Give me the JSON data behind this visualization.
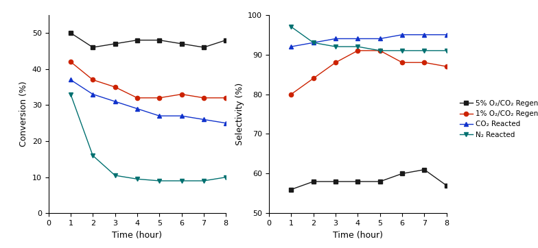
{
  "conv_time": [
    1,
    2,
    3,
    4,
    5,
    6,
    7,
    8
  ],
  "conv_5pct_O2": [
    50,
    46,
    47,
    48,
    48,
    47,
    46,
    48
  ],
  "conv_1pct_O2": [
    42,
    37,
    35,
    32,
    32,
    33,
    32,
    32
  ],
  "conv_CO2": [
    37,
    33,
    31,
    29,
    27,
    27,
    26,
    25
  ],
  "conv_N2": [
    33,
    16,
    10.5,
    9.5,
    9,
    9,
    9,
    10
  ],
  "sel_time": [
    1,
    2,
    3,
    4,
    5,
    6,
    7,
    8
  ],
  "sel_5pct_O2": [
    56,
    58,
    58,
    58,
    58,
    60,
    61,
    57
  ],
  "sel_1pct_O2": [
    80,
    84,
    88,
    91,
    91,
    88,
    88,
    87
  ],
  "sel_CO2": [
    92,
    93,
    94,
    94,
    94,
    95,
    95,
    95
  ],
  "sel_N2": [
    97,
    93,
    92,
    92,
    91,
    91,
    91,
    91
  ],
  "conv_ylim": [
    0,
    55
  ],
  "sel_ylim": [
    50,
    100
  ],
  "conv_yticks": [
    0,
    10,
    20,
    30,
    40,
    50
  ],
  "sel_yticks": [
    50,
    60,
    70,
    80,
    90,
    100
  ],
  "xticks": [
    0,
    1,
    2,
    3,
    4,
    5,
    6,
    7,
    8
  ],
  "color_black": "#1a1a1a",
  "color_red": "#cc2200",
  "color_blue": "#1133cc",
  "color_teal": "#007070",
  "legend_labels": [
    "5% O₂/CO₂ Regen",
    "1% O₂/CO₂ Regen",
    "CO₂ Reacted",
    "N₂ Reacted"
  ],
  "xlabel": "Time (hour)",
  "ylabel_conv": "Conversion (%)",
  "ylabel_sel": "Selectivity (%)",
  "figsize": [
    7.84,
    3.62
  ],
  "dpi": 100
}
